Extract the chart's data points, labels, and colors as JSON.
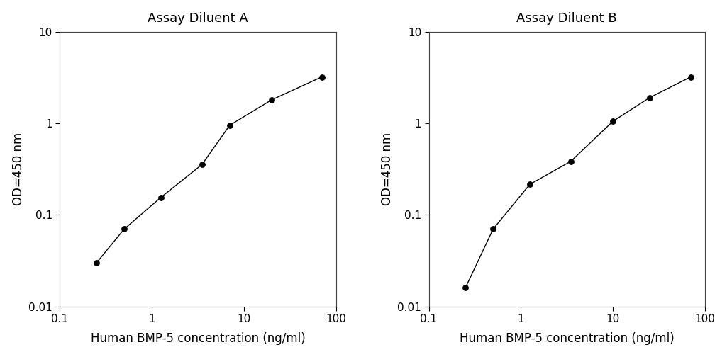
{
  "panel_A": {
    "title": "Assay Diluent A",
    "x": [
      0.25,
      0.5,
      1.25,
      3.5,
      7,
      20,
      70
    ],
    "y": [
      0.03,
      0.07,
      0.155,
      0.355,
      0.95,
      1.8,
      3.2
    ],
    "xlabel": "Human BMP-5 concentration (ng/ml)",
    "ylabel": "OD=450 nm",
    "xlim": [
      0.1,
      100
    ],
    "ylim": [
      0.01,
      10
    ],
    "xtick_labels": [
      "0.1",
      "1",
      "10",
      "100"
    ],
    "xtick_values": [
      0.1,
      1,
      10,
      100
    ],
    "ytick_labels": [
      "0.01",
      "0.1",
      "1",
      "10"
    ],
    "ytick_values": [
      0.01,
      0.1,
      1,
      10
    ]
  },
  "panel_B": {
    "title": "Assay Diluent B",
    "x": [
      0.25,
      0.5,
      1.25,
      3.5,
      10,
      25,
      70
    ],
    "y": [
      0.016,
      0.07,
      0.215,
      0.385,
      1.05,
      1.9,
      3.2
    ],
    "xlabel": "Human BMP-5 concentration (ng/ml)",
    "ylabel": "OD=450 nm",
    "xlim": [
      0.1,
      100
    ],
    "ylim": [
      0.01,
      10
    ],
    "xtick_labels": [
      "0.1",
      "1",
      "10",
      "100"
    ],
    "xtick_values": [
      0.1,
      1,
      10,
      100
    ],
    "ytick_labels": [
      "0.01",
      "0.1",
      "1",
      "10"
    ],
    "ytick_values": [
      0.01,
      0.1,
      1,
      10
    ]
  },
  "line_color": "#000000",
  "marker_color": "#000000",
  "marker": "o",
  "marker_size": 5.5,
  "line_width": 1.0,
  "title_fontsize": 13,
  "label_fontsize": 12,
  "tick_fontsize": 11,
  "background_color": "#ffffff"
}
